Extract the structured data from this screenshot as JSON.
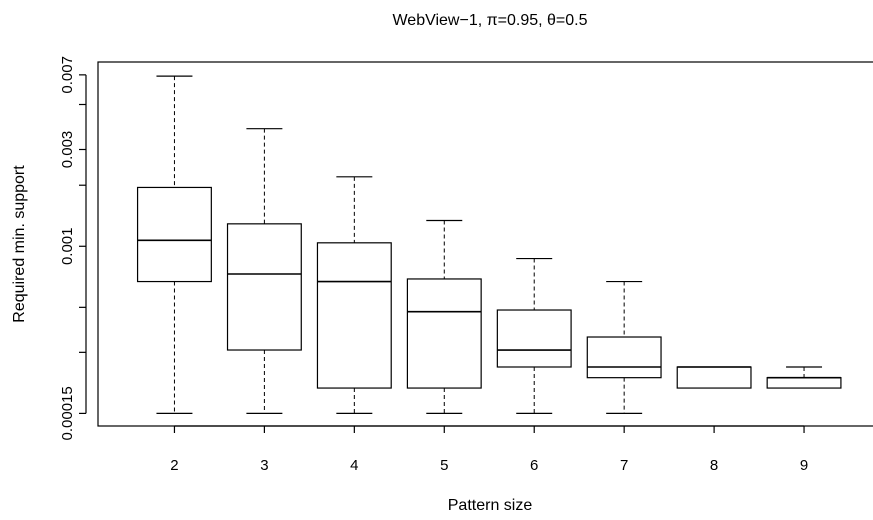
{
  "chart_data": {
    "type": "box",
    "title": "WebView−1, π=0.95, θ=0.5",
    "xlabel": "Pattern size",
    "ylabel": "Required min. support",
    "y_scale": "log",
    "ylim": [
      0.00013,
      0.0081
    ],
    "y_ticks": [
      {
        "value": 0.00015,
        "label": "0.00015"
      },
      {
        "value": 0.001,
        "label": "0.001"
      },
      {
        "value": 0.003,
        "label": "0.003"
      },
      {
        "value": 0.007,
        "label": "0.007"
      }
    ],
    "categories": [
      "2",
      "3",
      "4",
      "5",
      "6",
      "7",
      "8",
      "9"
    ],
    "boxes": [
      {
        "category": "2",
        "min": 0.00015,
        "q1": 0.00067,
        "median": 0.00107,
        "q3": 0.00195,
        "max": 0.0069
      },
      {
        "category": "3",
        "min": 0.00015,
        "q1": 0.000308,
        "median": 0.00073,
        "q3": 0.00129,
        "max": 0.0038
      },
      {
        "category": "4",
        "min": 0.00015,
        "q1": 0.0002,
        "median": 0.00067,
        "q3": 0.00104,
        "max": 0.0022
      },
      {
        "category": "5",
        "min": 0.00015,
        "q1": 0.0002,
        "median": 0.000476,
        "q3": 0.00069,
        "max": 0.00134
      },
      {
        "category": "6",
        "min": 0.00015,
        "q1": 0.000254,
        "median": 0.000308,
        "q3": 0.000485,
        "max": 0.00087
      },
      {
        "category": "7",
        "min": 0.00015,
        "q1": 0.000225,
        "median": 0.000254,
        "q3": 0.000357,
        "max": 0.00067
      },
      {
        "category": "8",
        "min": 0.0002,
        "q1": 0.0002,
        "median": 0.000254,
        "q3": 0.000254,
        "max": 0.000254
      },
      {
        "category": "9",
        "min": 0.0002,
        "q1": 0.0002,
        "median": 0.000225,
        "q3": 0.000225,
        "max": 0.000254
      }
    ],
    "grid": false,
    "legend": "none"
  }
}
